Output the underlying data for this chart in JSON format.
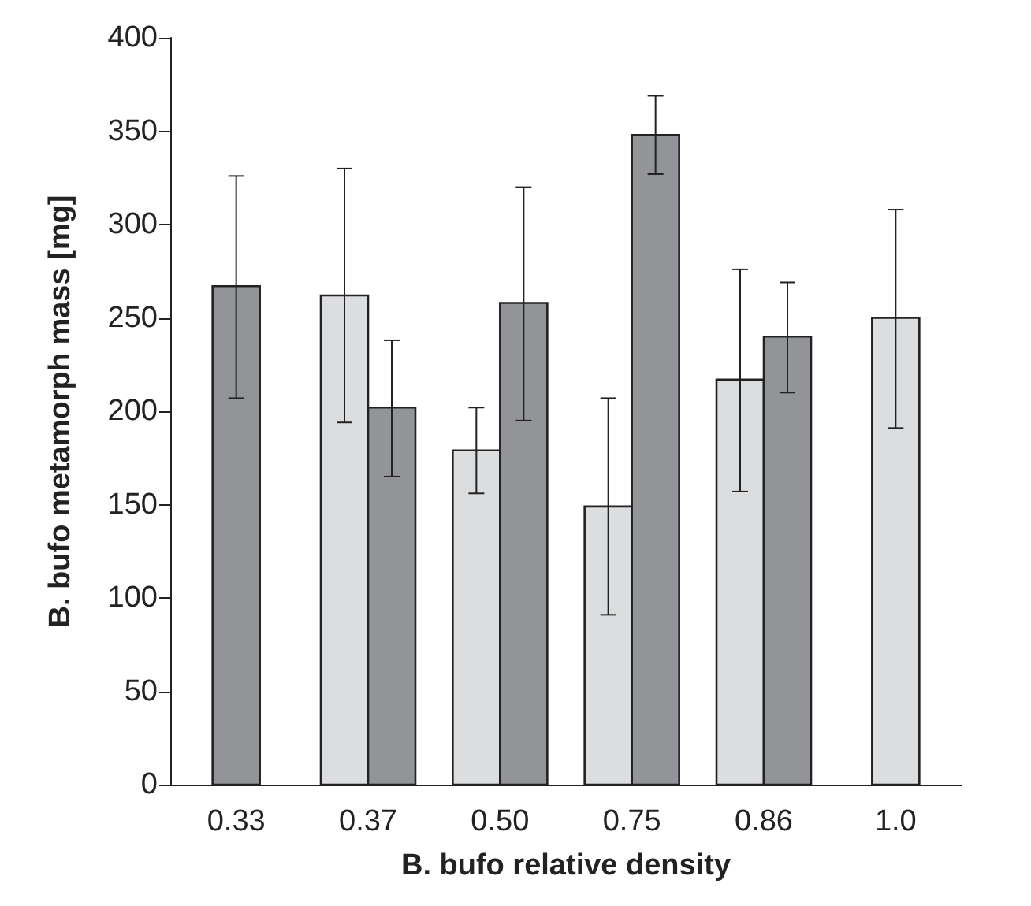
{
  "chart_data": {
    "type": "bar",
    "xlabel": "B. bufo relative density",
    "ylabel": "B. bufo metamorph mass [mg]",
    "categories": [
      "0.33",
      "0.37",
      "0.50",
      "0.75",
      "0.86",
      "1.0"
    ],
    "series": [
      {
        "color": "#dcdddf",
        "values": [
          null,
          262,
          179,
          149,
          217,
          250
        ],
        "errors": [
          null,
          [
            194,
            330
          ],
          [
            156,
            202
          ],
          [
            91,
            207
          ],
          [
            157,
            276
          ],
          [
            191,
            308
          ]
        ]
      },
      {
        "color": "#939498",
        "values": [
          267,
          202,
          258,
          348,
          240,
          null
        ],
        "errors": [
          [
            207,
            326
          ],
          [
            165,
            238
          ],
          [
            195,
            320
          ],
          [
            327,
            369
          ],
          [
            210,
            269
          ],
          null
        ]
      }
    ],
    "ylim": [
      0,
      400
    ],
    "yticks": [
      0,
      50,
      100,
      150,
      200,
      250,
      300,
      350,
      400
    ],
    "grid": false
  }
}
